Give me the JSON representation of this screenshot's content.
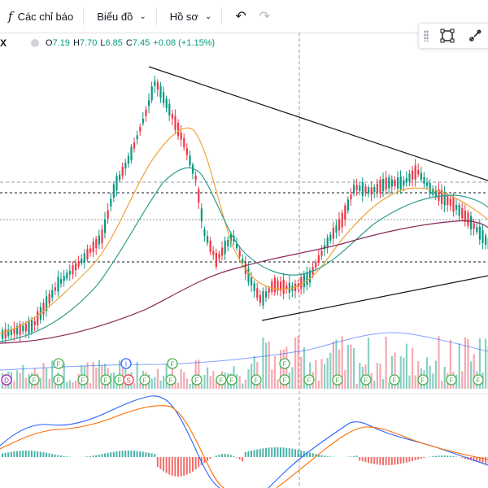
{
  "toolbar": {
    "fx_symbol": "f",
    "indicators_label": "Các chỉ báo",
    "chart_type_label": "Biểu đồ",
    "profile_label": "Hồ sơ"
  },
  "legend": {
    "symbol": "X",
    "open_key": "O",
    "open": "7.19",
    "high_key": "H",
    "high": "7.70",
    "low_key": "L",
    "low": "6.85",
    "close_key": "C",
    "close": "7.45",
    "change": "+0.08 (+1.15%)"
  },
  "floating_tools": [
    "drag-handle-icon",
    "rectangle-select-icon",
    "brush-icon"
  ],
  "event_markers": [
    "D",
    "F",
    "F",
    "F",
    "F",
    "F",
    "S",
    "F",
    "F",
    "F",
    "F",
    "F",
    "F",
    "F",
    "F",
    "F",
    "F",
    "F",
    "F",
    "F",
    "F"
  ],
  "event_markers_upper": [
    "F",
    "I",
    "F",
    "F"
  ],
  "colors": {
    "up": "#089981",
    "down": "#f23645",
    "trend": "#131722",
    "ma_fast": "#f0a43a",
    "ma_mid": "#2f9e8f",
    "ma_slow": "#8a2a5a"
  }
}
